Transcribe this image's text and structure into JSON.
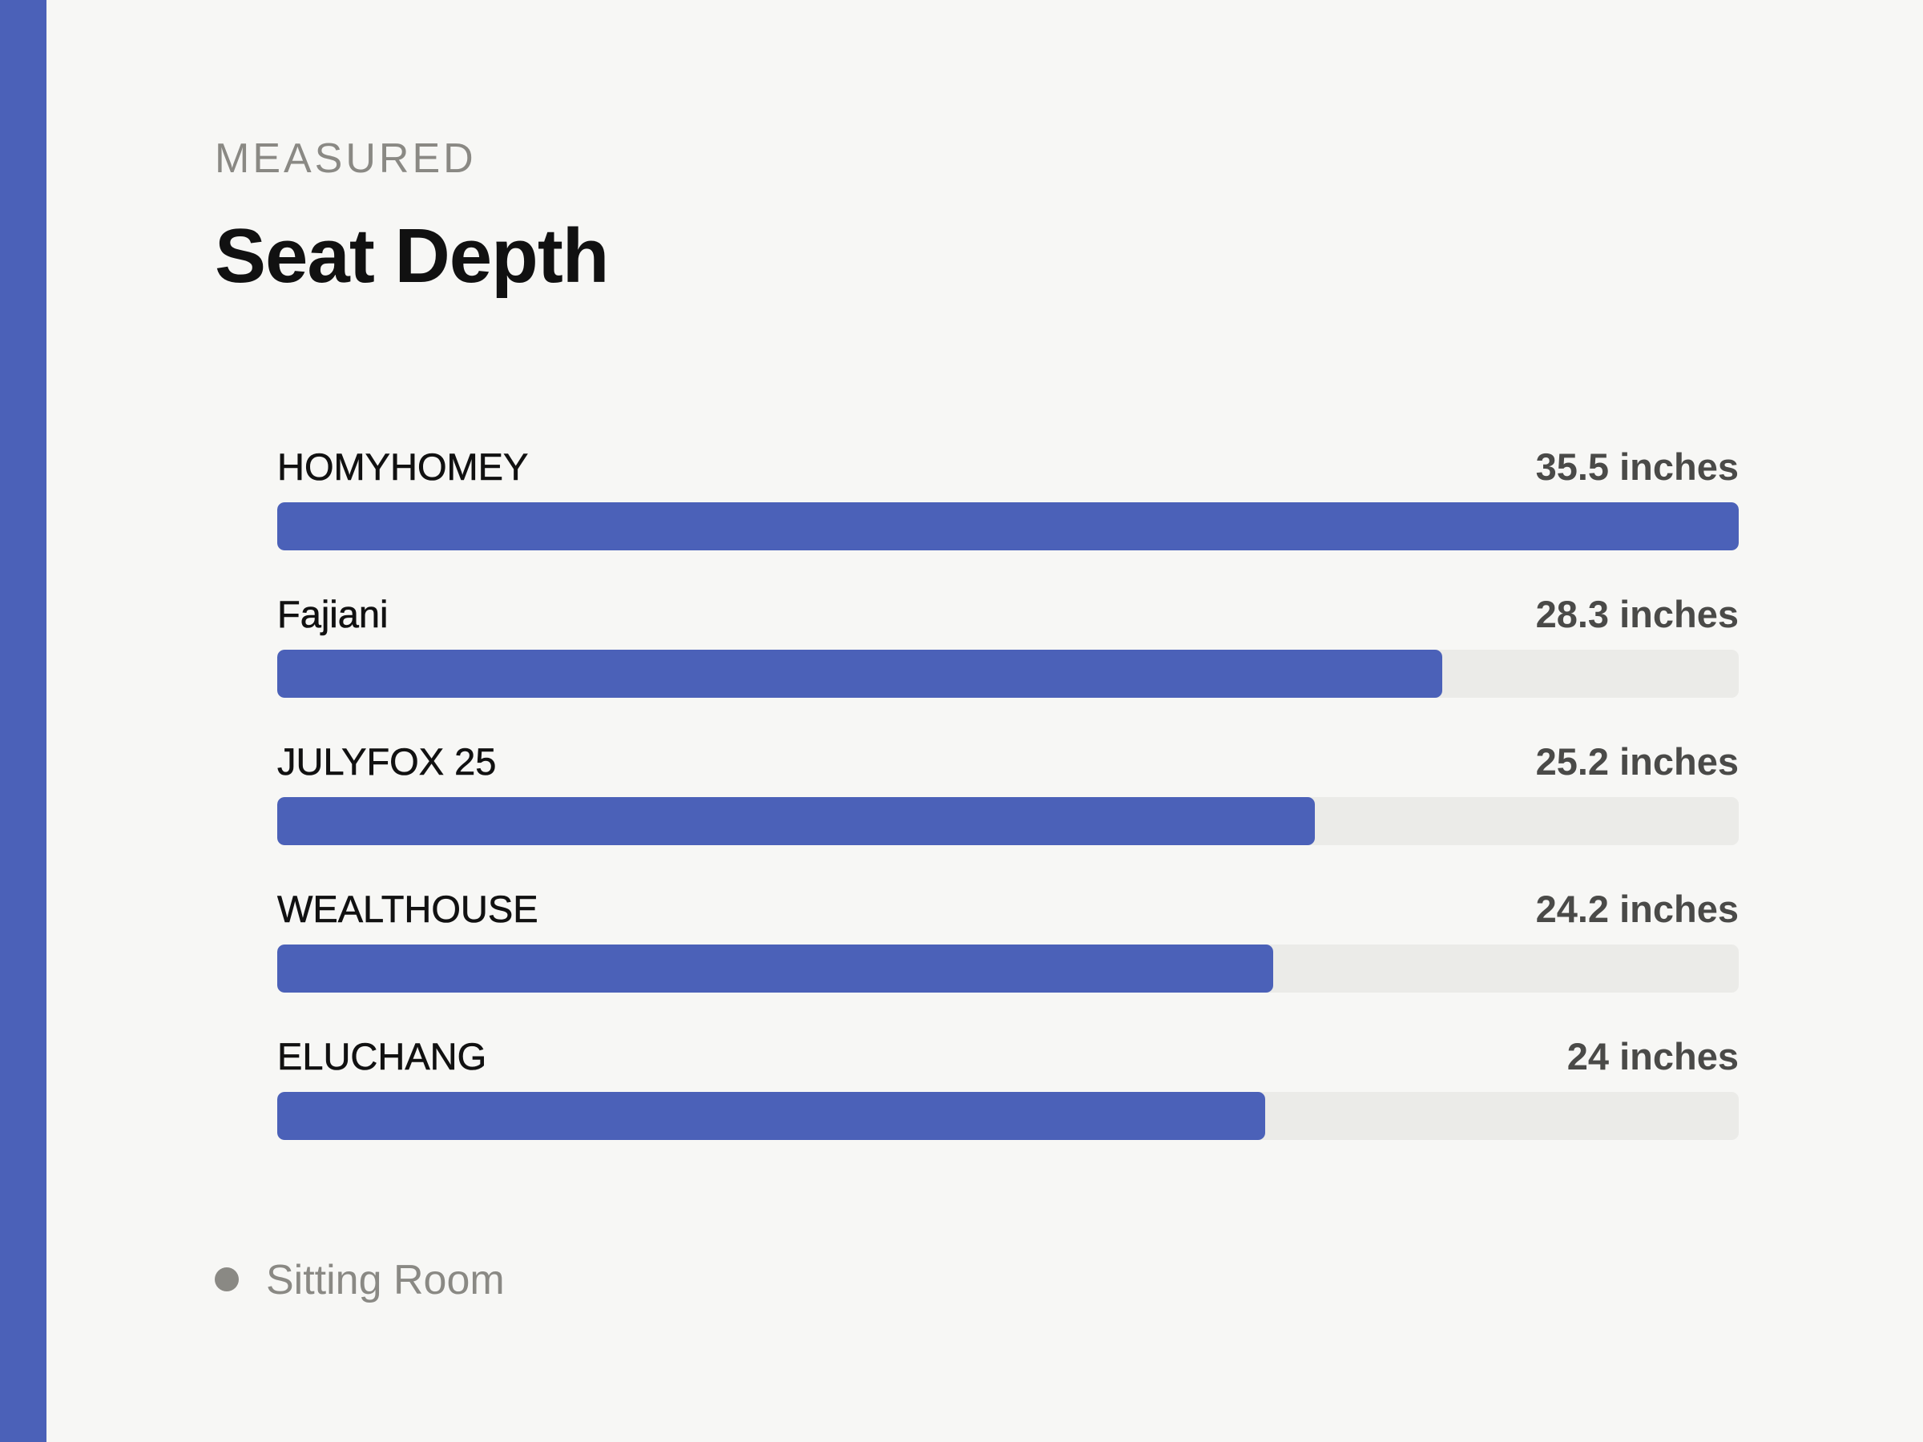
{
  "header": {
    "eyebrow": "MEASURED",
    "title": "Seat Depth"
  },
  "colors": {
    "accent": "#4b61b8",
    "track": "#ebebe8",
    "legend_dot": "#8a8984",
    "background": "#f7f7f5"
  },
  "legend": {
    "label": "Sitting Room"
  },
  "chart_data": {
    "type": "bar",
    "orientation": "horizontal",
    "title": "Seat Depth",
    "subtitle": "MEASURED",
    "categories": [
      "HOMYHOMEY",
      "Fajiani",
      "JULYFOX 25",
      "WEALTHOUSE",
      "ELUCHANG"
    ],
    "values": [
      35.5,
      28.3,
      25.2,
      24.2,
      24
    ],
    "value_labels": [
      "35.5 inches",
      "28.3 inches",
      "25.2 inches",
      "24.2 inches",
      "24 inches"
    ],
    "unit": "inches",
    "xlim": [
      0,
      35.5
    ],
    "grid": false,
    "legend": [
      "Sitting Room"
    ],
    "legend_position": "bottom-left"
  }
}
